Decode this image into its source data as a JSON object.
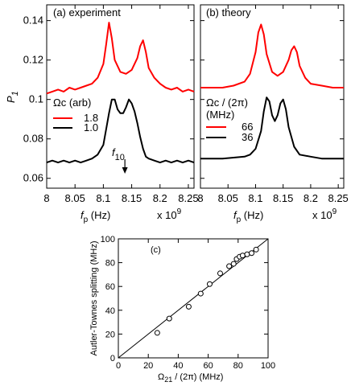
{
  "chart_data": [
    {
      "type": "line",
      "panel_label": "(a)  experiment",
      "xlabel_main": "f",
      "xlabel_sub": "p",
      "xlabel_unit": " (Hz)",
      "x_multiplier_base": "x 10",
      "x_multiplier_exp": "9",
      "ylabel_main": "P",
      "ylabel_sub": "1",
      "xlim": [
        8.0,
        8.26
      ],
      "ylim": [
        0.055,
        0.148
      ],
      "x_ticks": [
        8,
        8.05,
        8.1,
        8.15,
        8.2,
        8.25
      ],
      "x_tick_labels": [
        "8",
        "8.05",
        "8.1",
        "8.15",
        "8.2",
        "8.25"
      ],
      "y_ticks": [
        0.06,
        0.08,
        0.1,
        0.12,
        0.14
      ],
      "y_tick_labels": [
        "0.06",
        "0.08",
        "0.1",
        "0.12",
        "0.14"
      ],
      "legend_title": "Ωc (arb)",
      "annotation_main": "f",
      "annotation_sub": "10",
      "annotation_x": 8.138,
      "series": [
        {
          "name": "1.8",
          "color": "#ff0000",
          "x": [
            8.0,
            8.01,
            8.02,
            8.03,
            8.04,
            8.05,
            8.06,
            8.07,
            8.08,
            8.09,
            8.1,
            8.105,
            8.11,
            8.115,
            8.12,
            8.13,
            8.14,
            8.15,
            8.16,
            8.165,
            8.17,
            8.175,
            8.18,
            8.19,
            8.2,
            8.21,
            8.22,
            8.23,
            8.24,
            8.25,
            8.26
          ],
          "y": [
            0.103,
            0.104,
            0.105,
            0.104,
            0.106,
            0.105,
            0.106,
            0.107,
            0.108,
            0.111,
            0.118,
            0.128,
            0.139,
            0.131,
            0.12,
            0.114,
            0.113,
            0.115,
            0.121,
            0.127,
            0.13,
            0.124,
            0.116,
            0.111,
            0.108,
            0.106,
            0.105,
            0.106,
            0.104,
            0.105,
            0.104
          ]
        },
        {
          "name": "1.0",
          "color": "#000000",
          "x": [
            8.0,
            8.01,
            8.02,
            8.03,
            8.04,
            8.05,
            8.06,
            8.07,
            8.08,
            8.09,
            8.1,
            8.105,
            8.11,
            8.115,
            8.12,
            8.125,
            8.13,
            8.135,
            8.14,
            8.145,
            8.15,
            8.155,
            8.16,
            8.165,
            8.17,
            8.175,
            8.18,
            8.19,
            8.2,
            8.21,
            8.22,
            8.23,
            8.24,
            8.25,
            8.26
          ],
          "y": [
            0.068,
            0.069,
            0.068,
            0.069,
            0.068,
            0.069,
            0.068,
            0.069,
            0.07,
            0.072,
            0.077,
            0.085,
            0.093,
            0.1,
            0.1,
            0.095,
            0.093,
            0.093,
            0.096,
            0.1,
            0.098,
            0.094,
            0.088,
            0.081,
            0.075,
            0.071,
            0.07,
            0.069,
            0.068,
            0.069,
            0.068,
            0.069,
            0.068,
            0.069,
            0.068
          ]
        }
      ]
    },
    {
      "type": "line",
      "panel_label": "(b)  theory",
      "xlabel_main": "f",
      "xlabel_sub": "p",
      "xlabel_unit": " (Hz)",
      "x_multiplier_base": "x 10",
      "x_multiplier_exp": "9",
      "xlim": [
        8.0,
        8.26
      ],
      "ylim": [
        0.055,
        0.148
      ],
      "x_ticks": [
        8,
        8.05,
        8.1,
        8.15,
        8.2,
        8.25
      ],
      "x_tick_labels": [
        "8",
        "8.05",
        "8.1",
        "8.15",
        "8.2",
        "8.25"
      ],
      "y_ticks": [
        0.06,
        0.08,
        0.1,
        0.12,
        0.14
      ],
      "legend_title": "Ωc / (2π)",
      "legend_unit": "(MHz)",
      "series": [
        {
          "name": "66",
          "color": "#ff0000",
          "x": [
            8.0,
            8.02,
            8.04,
            8.06,
            8.08,
            8.09,
            8.1,
            8.105,
            8.11,
            8.115,
            8.12,
            8.13,
            8.14,
            8.15,
            8.16,
            8.165,
            8.17,
            8.175,
            8.18,
            8.19,
            8.2,
            8.22,
            8.24,
            8.26
          ],
          "y": [
            0.106,
            0.106,
            0.106,
            0.107,
            0.109,
            0.113,
            0.124,
            0.134,
            0.138,
            0.133,
            0.123,
            0.114,
            0.112,
            0.114,
            0.12,
            0.125,
            0.127,
            0.124,
            0.117,
            0.111,
            0.108,
            0.107,
            0.106,
            0.106
          ]
        },
        {
          "name": "36",
          "color": "#000000",
          "x": [
            8.0,
            8.04,
            8.08,
            8.09,
            8.1,
            8.11,
            8.115,
            8.12,
            8.125,
            8.13,
            8.135,
            8.14,
            8.145,
            8.15,
            8.155,
            8.16,
            8.17,
            8.18,
            8.2,
            8.22,
            8.26
          ],
          "y": [
            0.07,
            0.07,
            0.071,
            0.072,
            0.075,
            0.084,
            0.094,
            0.101,
            0.099,
            0.092,
            0.089,
            0.092,
            0.098,
            0.1,
            0.095,
            0.086,
            0.076,
            0.072,
            0.071,
            0.07,
            0.07
          ]
        }
      ]
    },
    {
      "type": "scatter",
      "panel_label": "(c)",
      "xlabel_main": "Ω",
      "xlabel_sub": "21",
      "xlabel_unit": " / (2π) (MHz)",
      "ylabel": "Autler-Townes splitting (MHz)",
      "xlim": [
        0,
        100
      ],
      "ylim": [
        0,
        100
      ],
      "x_ticks": [
        0,
        20,
        40,
        60,
        80,
        100
      ],
      "x_tick_labels": [
        "0",
        "20",
        "40",
        "60",
        "80",
        "100"
      ],
      "y_ticks": [
        0,
        20,
        40,
        60,
        80,
        100
      ],
      "y_tick_labels": [
        "0",
        "20",
        "40",
        "60",
        "80",
        "100"
      ],
      "points": [
        [
          26,
          21
        ],
        [
          34,
          33
        ],
        [
          47,
          43
        ],
        [
          55,
          54
        ],
        [
          61,
          62
        ],
        [
          68,
          71
        ],
        [
          74,
          77
        ],
        [
          77,
          79
        ],
        [
          79,
          83
        ],
        [
          81,
          85
        ],
        [
          83,
          86
        ],
        [
          86,
          87
        ],
        [
          89,
          88
        ],
        [
          92,
          91
        ]
      ],
      "line": [
        [
          0,
          0
        ],
        [
          100,
          100
        ]
      ]
    }
  ]
}
